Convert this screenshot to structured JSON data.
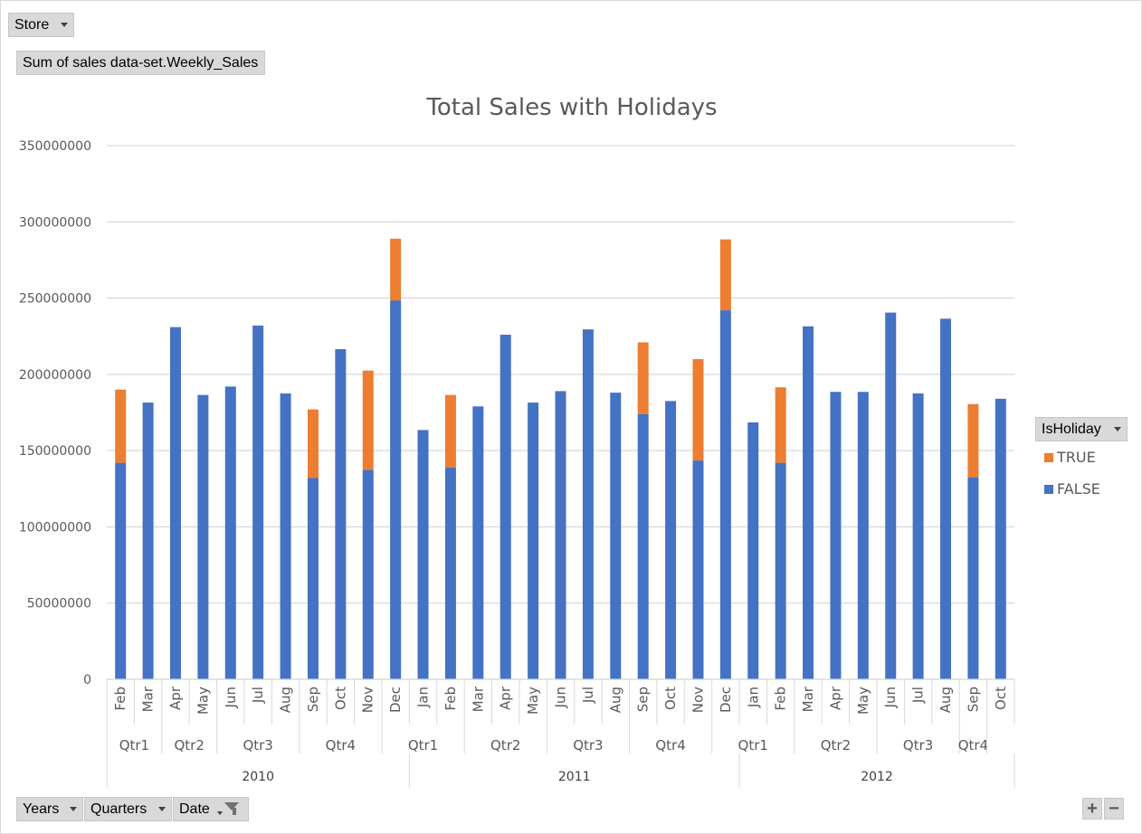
{
  "pivot": {
    "filter_field": "Store",
    "values_field": "Sum of sales data-set.Weekly_Sales",
    "legend_field": "IsHoliday",
    "axis_fields": [
      "Years",
      "Quarters",
      "Date"
    ]
  },
  "zoom": {
    "plus": "+",
    "minus": "−"
  },
  "colors": {
    "false_series": "#4472C4",
    "true_series": "#ED7D31",
    "grid": "#d9d9d9",
    "axis_text": "#595959"
  },
  "chart_data": {
    "type": "bar",
    "stacked": true,
    "title": "Total Sales with Holidays",
    "xlabel": "",
    "ylabel": "",
    "ylim": [
      0,
      350000000
    ],
    "yticks": [
      0,
      50000000,
      100000000,
      150000000,
      200000000,
      250000000,
      300000000,
      350000000
    ],
    "ytick_labels": [
      "0",
      "50000000",
      "100000000",
      "150000000",
      "200000000",
      "250000000",
      "300000000",
      "350000000"
    ],
    "grid": true,
    "legend_position": "right",
    "categories": [
      "Feb",
      "Mar",
      "Apr",
      "May",
      "Jun",
      "Jul",
      "Aug",
      "Sep",
      "Oct",
      "Nov",
      "Dec",
      "Jan",
      "Feb",
      "Mar",
      "Apr",
      "May",
      "Jun",
      "Jul",
      "Aug",
      "Sep",
      "Oct",
      "Nov",
      "Dec",
      "Jan",
      "Feb",
      "Mar",
      "Apr",
      "May",
      "Jun",
      "Jul",
      "Aug",
      "Sep",
      "Oct"
    ],
    "quarters": [
      {
        "label": "Qtr1",
        "count": 2
      },
      {
        "label": "Qtr2",
        "count": 2
      },
      {
        "label": "Qtr3",
        "count": 3
      },
      {
        "label": "Qtr4",
        "count": 3
      },
      {
        "label": "Qtr1",
        "count": 3
      },
      {
        "label": "Qtr2",
        "count": 3
      },
      {
        "label": "Qtr3",
        "count": 3
      },
      {
        "label": "Qtr4",
        "count": 3
      },
      {
        "label": "Qtr1",
        "count": 3
      },
      {
        "label": "Qtr2",
        "count": 3
      },
      {
        "label": "Qtr3",
        "count": 3
      },
      {
        "label": "Qtr4",
        "count": 1
      }
    ],
    "years": [
      {
        "label": "2010",
        "count": 11
      },
      {
        "label": "2011",
        "count": 12
      },
      {
        "label": "2012",
        "count": 10
      }
    ],
    "series": [
      {
        "name": "FALSE",
        "values": [
          142000000,
          181500000,
          231000000,
          186500000,
          192000000,
          232000000,
          187500000,
          132000000,
          216500000,
          137500000,
          248500000,
          163500000,
          139000000,
          179000000,
          226000000,
          181500000,
          189000000,
          229500000,
          188000000,
          174000000,
          182500000,
          143500000,
          242000000,
          168500000,
          142000000,
          231500000,
          188500000,
          188500000,
          240500000,
          187500000,
          236500000,
          132500000,
          184000000
        ]
      },
      {
        "name": "TRUE",
        "values": [
          48000000,
          0,
          0,
          0,
          0,
          0,
          0,
          45000000,
          0,
          65000000,
          40500000,
          0,
          47500000,
          0,
          0,
          0,
          0,
          0,
          0,
          47000000,
          0,
          66500000,
          46500000,
          0,
          49500000,
          0,
          0,
          0,
          0,
          0,
          0,
          48000000,
          0
        ]
      }
    ],
    "legend_order": [
      "TRUE",
      "FALSE"
    ]
  }
}
